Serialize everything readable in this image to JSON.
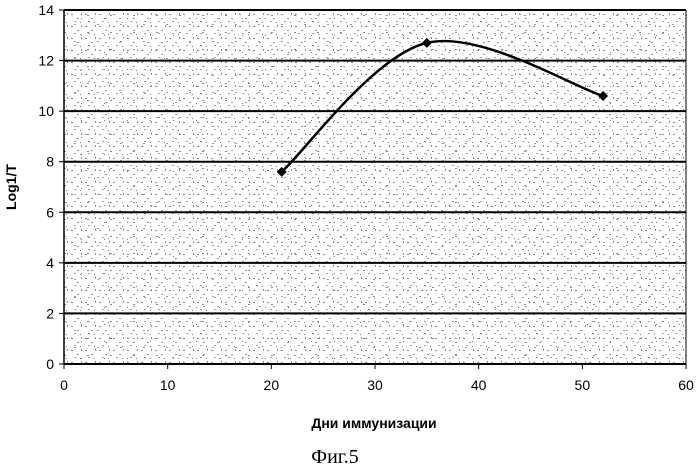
{
  "chart_data": {
    "type": "line",
    "xlabel": "Дни иммунизации",
    "ylabel": "Log1/T",
    "xlim": [
      0,
      60
    ],
    "ylim": [
      0,
      14
    ],
    "x_ticks": [
      "0",
      "10",
      "20",
      "30",
      "40",
      "50",
      "60"
    ],
    "y_ticks": [
      "0",
      "2",
      "4",
      "6",
      "8",
      "10",
      "12",
      "14"
    ],
    "grid": "horizontal",
    "background": "stippled gray texture",
    "series": [
      {
        "x": [
          21,
          35,
          52
        ],
        "y": [
          7.6,
          12.7,
          10.6
        ]
      }
    ]
  },
  "caption": "Фиг.5"
}
